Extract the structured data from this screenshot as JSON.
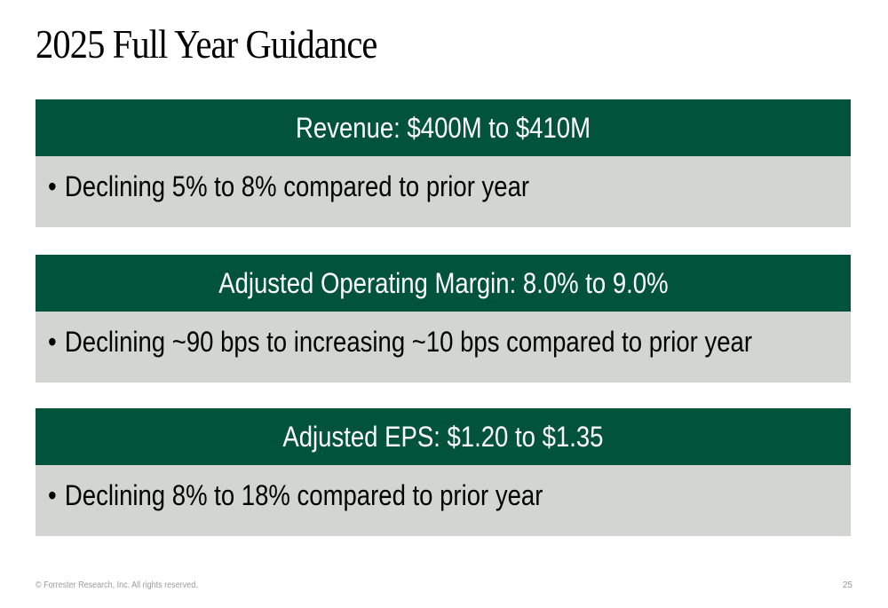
{
  "slide": {
    "title": "2025 Full Year Guidance",
    "colors": {
      "header_background": "#02533c",
      "body_background": "#d2d5d1",
      "header_text": "#ffffff",
      "footer_text": "#9a9a9a"
    },
    "bullet_glyph": "•",
    "cards": [
      {
        "heading": "Revenue: $400M to $410M",
        "bullet": "Declining 5% to 8% compared to prior year"
      },
      {
        "heading": "Adjusted Operating Margin: 8.0% to 9.0%",
        "bullet": "Declining ~90 bps to increasing ~10 bps compared to prior year"
      },
      {
        "heading": "Adjusted EPS: $1.20 to $1.35",
        "bullet": "Declining 8% to 18% compared to prior year"
      }
    ],
    "footer": {
      "copyright": "© Forrester Research, Inc. All rights reserved.",
      "page_number": "25"
    }
  }
}
